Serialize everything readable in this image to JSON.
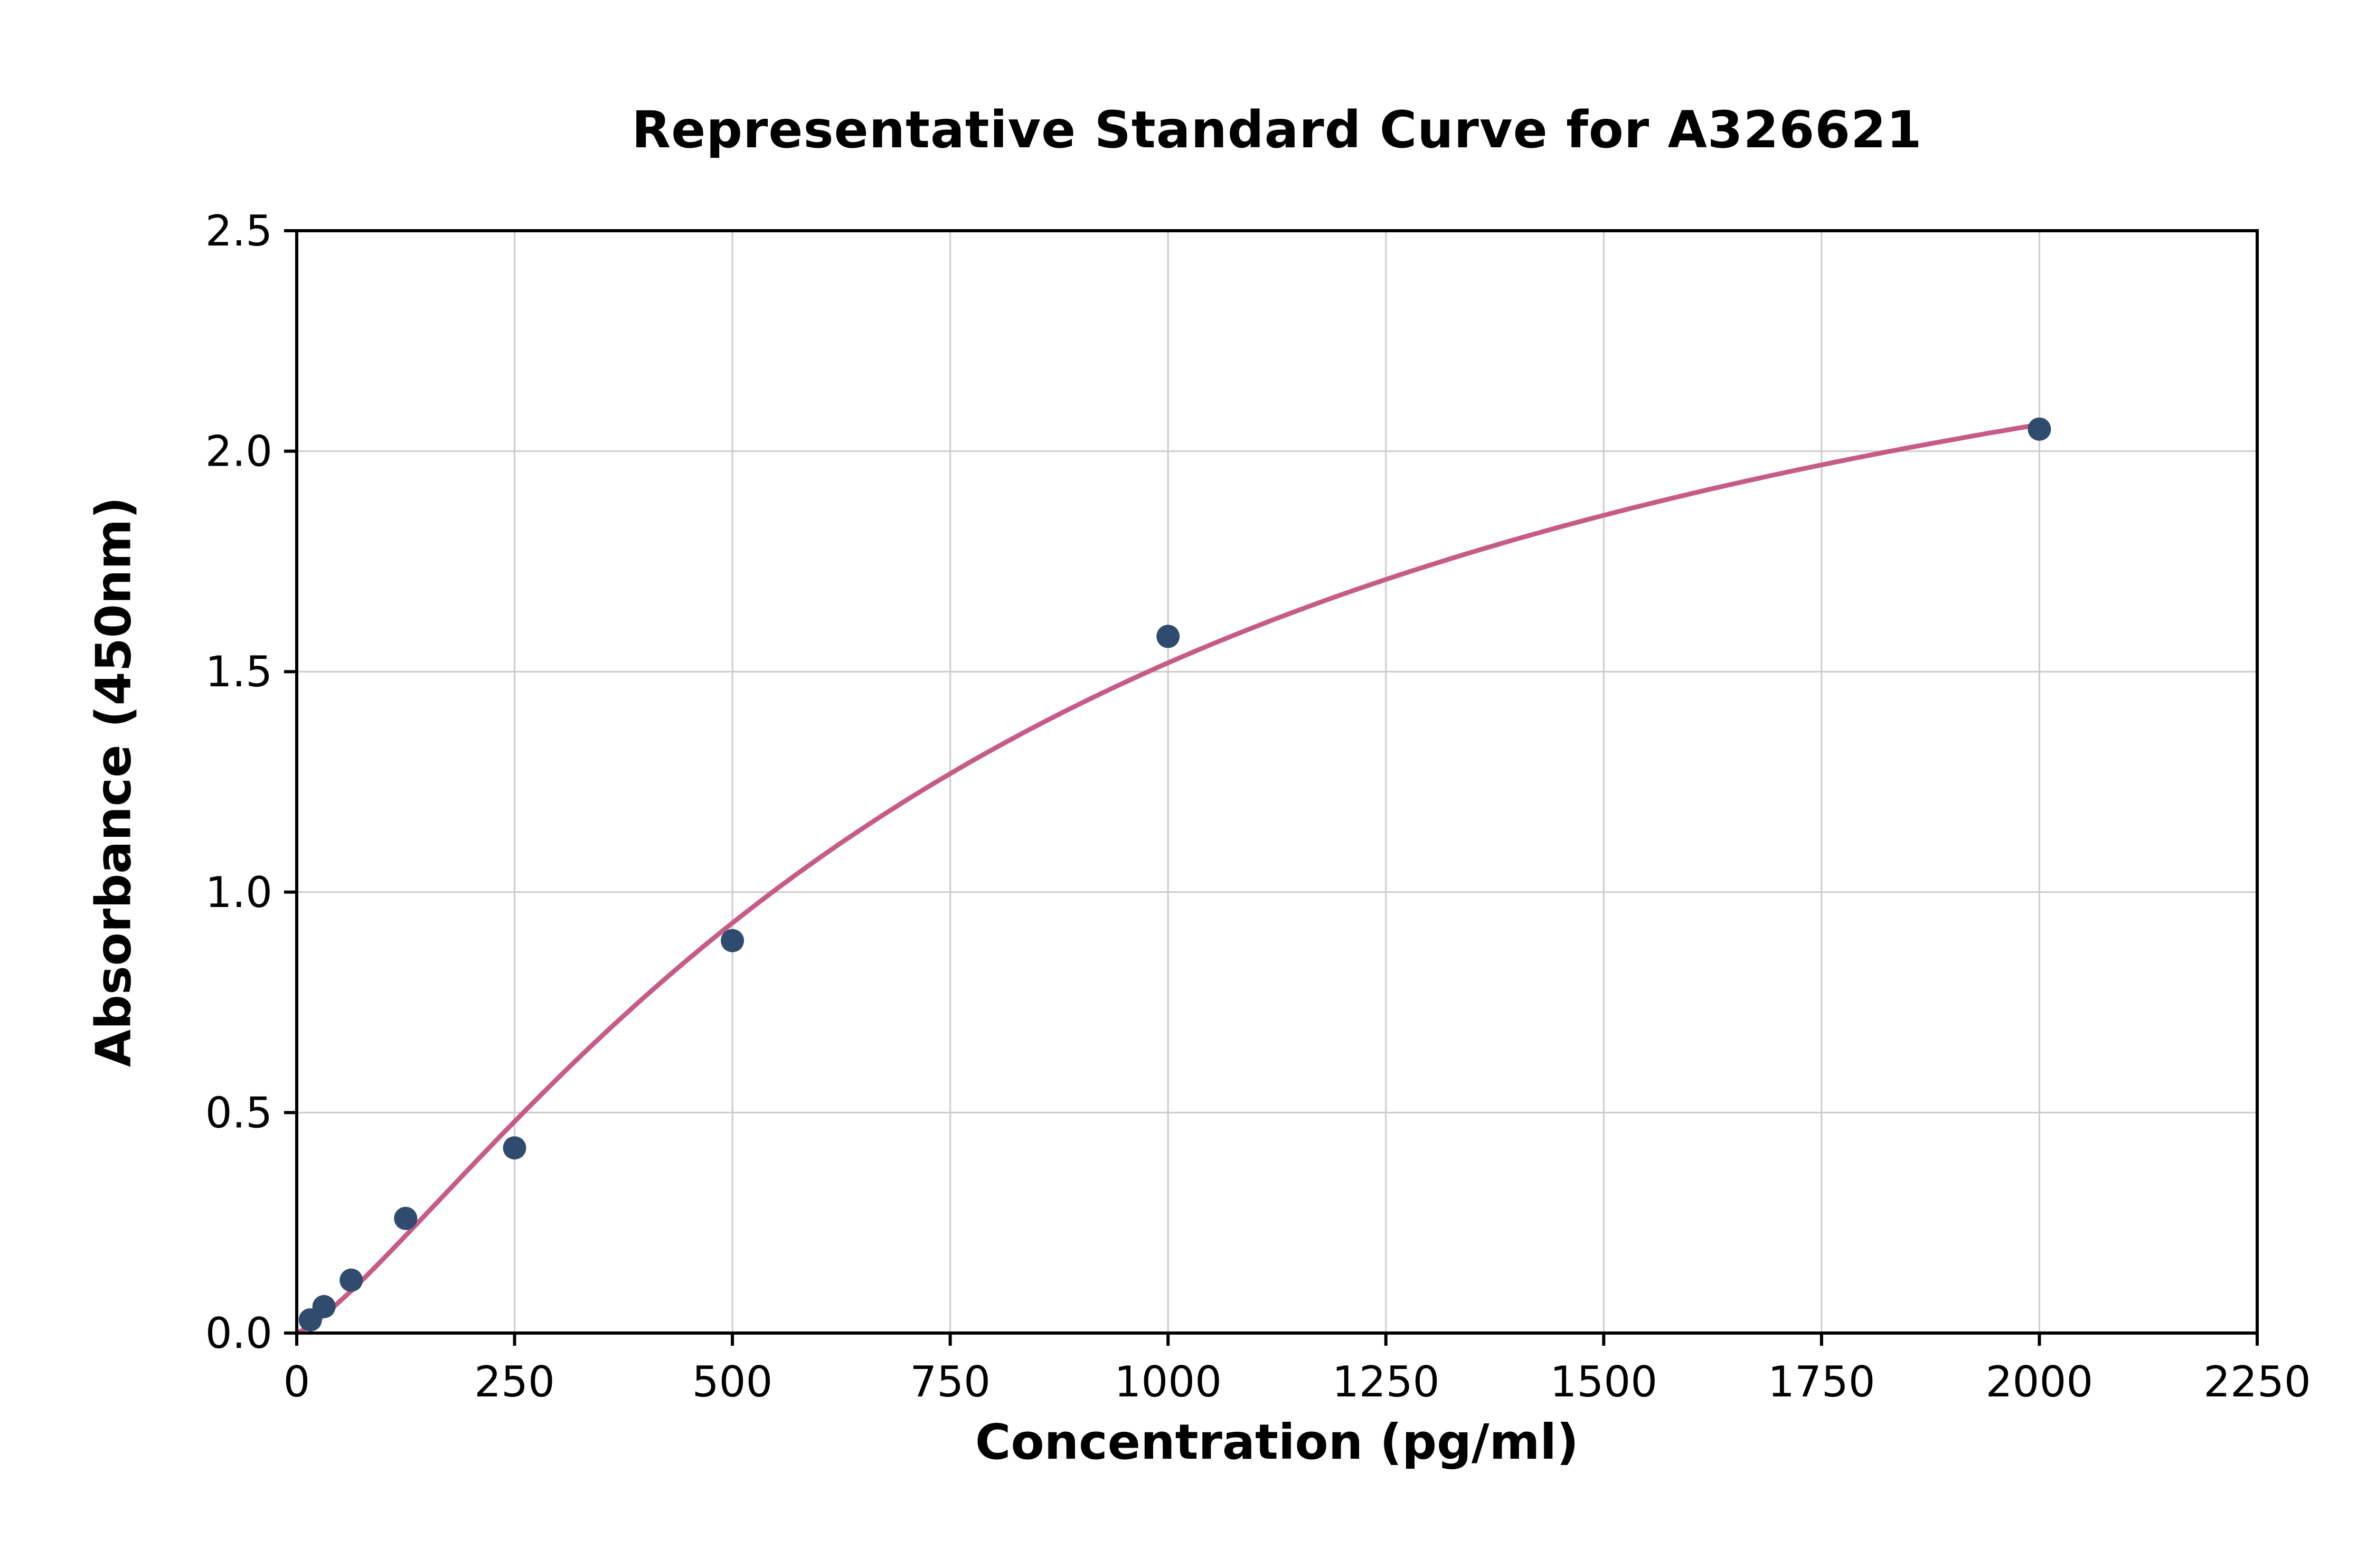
{
  "chart_data": {
    "type": "scatter",
    "title": "Representative Standard Curve for A326621",
    "xlabel": "Concentration (pg/ml)",
    "ylabel": "Absorbance (450nm)",
    "xlim": [
      0,
      2250
    ],
    "ylim": [
      0,
      2.5
    ],
    "x_ticks": [
      0,
      250,
      500,
      750,
      1000,
      1250,
      1500,
      1750,
      2000,
      2250
    ],
    "x_tick_labels": [
      "0",
      "250",
      "500",
      "750",
      "1000",
      "1250",
      "1500",
      "1750",
      "2000",
      "2250"
    ],
    "y_ticks": [
      0,
      0.5,
      1.0,
      1.5,
      2.0,
      2.5
    ],
    "y_tick_labels": [
      "0.0",
      "0.5",
      "1.0",
      "1.5",
      "2.0",
      "2.5"
    ],
    "grid": true,
    "legend": "none",
    "points": [
      [
        15.6,
        0.03
      ],
      [
        31.25,
        0.06
      ],
      [
        62.5,
        0.12
      ],
      [
        125,
        0.26
      ],
      [
        250,
        0.42
      ],
      [
        500,
        0.89
      ],
      [
        1000,
        1.58
      ],
      [
        2000,
        2.05
      ]
    ],
    "fit_curve": {
      "model": "4PL",
      "a": 0,
      "b": 1.274,
      "c": 847,
      "d": 2.75,
      "x_start": 0,
      "x_end": 2005
    },
    "colors": {
      "marker": "#2f4b6e",
      "curve": "#c75b88",
      "grid": "#cccccc",
      "axis": "#000000",
      "background": "#ffffff"
    }
  }
}
